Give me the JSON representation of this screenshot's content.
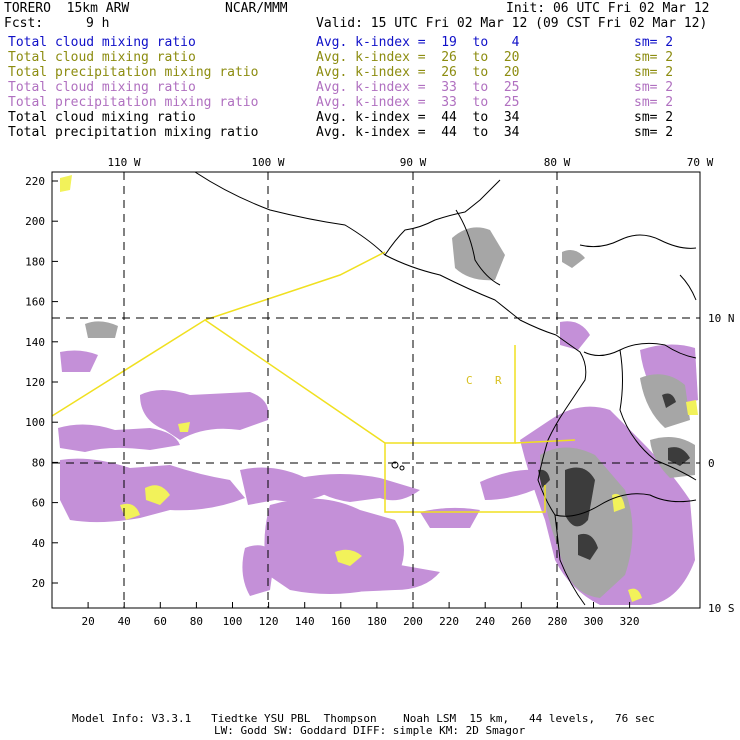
{
  "header": {
    "model": "TORERO  15km ARW",
    "org": "NCAR/MMM",
    "init": "Init: 06 UTC Fri 02 Mar 12",
    "fcst_label": "Fcst:",
    "fcst_value": "9 h",
    "valid": "Valid: 15 UTC Fri 02 Mar 12 (09 CST Fri 02 Mar 12)"
  },
  "legend": [
    {
      "field": "Total cloud mixing ratio",
      "kindex": "Avg. k-index =  19  to   4",
      "sm": "sm= 2",
      "color": "#1010c8"
    },
    {
      "field": "Total cloud mixing ratio",
      "kindex": "Avg. k-index =  26  to  20",
      "sm": "sm= 2",
      "color": "#8c8c10"
    },
    {
      "field": "Total precipitation mixing ratio",
      "kindex": "Avg. k-index =  26  to  20",
      "sm": "sm= 2",
      "color": "#8c8c10"
    },
    {
      "field": "Total cloud mixing ratio",
      "kindex": "Avg. k-index =  33  to  25",
      "sm": "sm= 2",
      "color": "#b070c0"
    },
    {
      "field": "Total precipitation mixing ratio",
      "kindex": "Avg. k-index =  33  to  25",
      "sm": "sm= 2",
      "color": "#b070c0"
    },
    {
      "field": "Total cloud mixing ratio",
      "kindex": "Avg. k-index =  44  to  34",
      "sm": "sm= 2",
      "color": "#000000"
    },
    {
      "field": "Total precipitation mixing ratio",
      "kindex": "Avg. k-index =  44  to  34",
      "sm": "sm= 2",
      "color": "#000000"
    }
  ],
  "map": {
    "top_ticks": [
      "110 W",
      "100 W",
      "90 W",
      "80 W",
      "70 W"
    ],
    "bottom_ticks": [
      "20",
      "40",
      "60",
      "80",
      "100",
      "120",
      "140",
      "160",
      "180",
      "200",
      "220",
      "240",
      "260",
      "280",
      "300",
      "320"
    ],
    "left_ticks": [
      "220",
      "200",
      "180",
      "160",
      "140",
      "120",
      "100",
      "80",
      "60",
      "40",
      "20"
    ],
    "right_ticks": [
      "10 N",
      "0",
      "10 S"
    ],
    "region_labels": [
      "C",
      "R"
    ],
    "colors": {
      "cloud_low": "#c490d8",
      "cloud_mid": "#9c9c9c",
      "precip_high": "#f2f25a",
      "boundary": "#f0e020",
      "coast": "#000000"
    }
  },
  "footer": {
    "line1": "Model Info: V3.3.1   Tiedtke YSU PBL  Thompson    Noah LSM  15 km,   44 levels,   76 sec",
    "line2": "LW: Godd SW: Goddard DIFF: simple KM: 2D Smagor"
  }
}
